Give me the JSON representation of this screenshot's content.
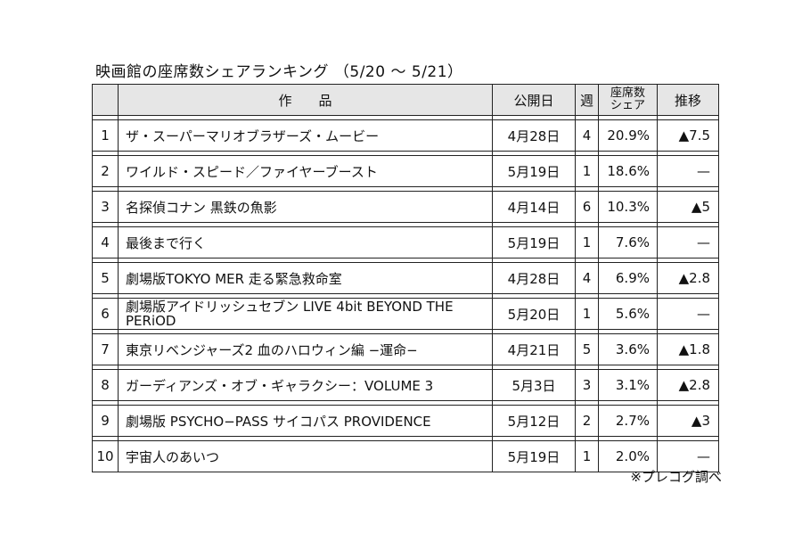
{
  "title": "映画館の座席数シェアランキング （5/20 〜 5/21）",
  "headers": {
    "rank": "",
    "title": "作　　品",
    "release": "公開日",
    "week": "週",
    "share_line1": "座席数",
    "share_line2": "シェア",
    "trend": "推移"
  },
  "rows": [
    {
      "rank": "1",
      "title": "ザ・スーパーマリオブラザーズ・ムービー",
      "release": "4月28日",
      "week": "4",
      "share": "20.9%",
      "trend": "▲7.5"
    },
    {
      "rank": "2",
      "title": "ワイルド・スピード／ファイヤーブースト",
      "release": "5月19日",
      "week": "1",
      "share": "18.6%",
      "trend": "—"
    },
    {
      "rank": "3",
      "title": "名探偵コナン 黒鉄の魚影",
      "release": "4月14日",
      "week": "6",
      "share": "10.3%",
      "trend": "▲5"
    },
    {
      "rank": "4",
      "title": "最後まで行く",
      "release": "5月19日",
      "week": "1",
      "share": "7.6%",
      "trend": "—"
    },
    {
      "rank": "5",
      "title": "劇場版TOKYO MER 走る緊急救命室",
      "release": "4月28日",
      "week": "4",
      "share": "6.9%",
      "trend": "▲2.8"
    },
    {
      "rank": "6",
      "title": "劇場版アイドリッシュセブン LIVE 4bit BEYOND THE PERiOD",
      "release": "5月20日",
      "week": "1",
      "share": "5.6%",
      "trend": "—"
    },
    {
      "rank": "7",
      "title": "東京リベンジャーズ2 血のハロウィン編 −運命−",
      "release": "4月21日",
      "week": "5",
      "share": "3.6%",
      "trend": "▲1.8"
    },
    {
      "rank": "8",
      "title": "ガーディアンズ・オブ・ギャラクシー：VOLUME 3",
      "release": "5月3日",
      "week": "3",
      "share": "3.1%",
      "trend": "▲2.8"
    },
    {
      "rank": "9",
      "title": "劇場版 PSYCHO−PASS サイコパス PROVIDENCE",
      "release": "5月12日",
      "week": "2",
      "share": "2.7%",
      "trend": "▲3"
    },
    {
      "rank": "10",
      "title": "宇宙人のあいつ",
      "release": "5月19日",
      "week": "1",
      "share": "2.0%",
      "trend": "—"
    }
  ],
  "note": "※プレコグ調べ"
}
